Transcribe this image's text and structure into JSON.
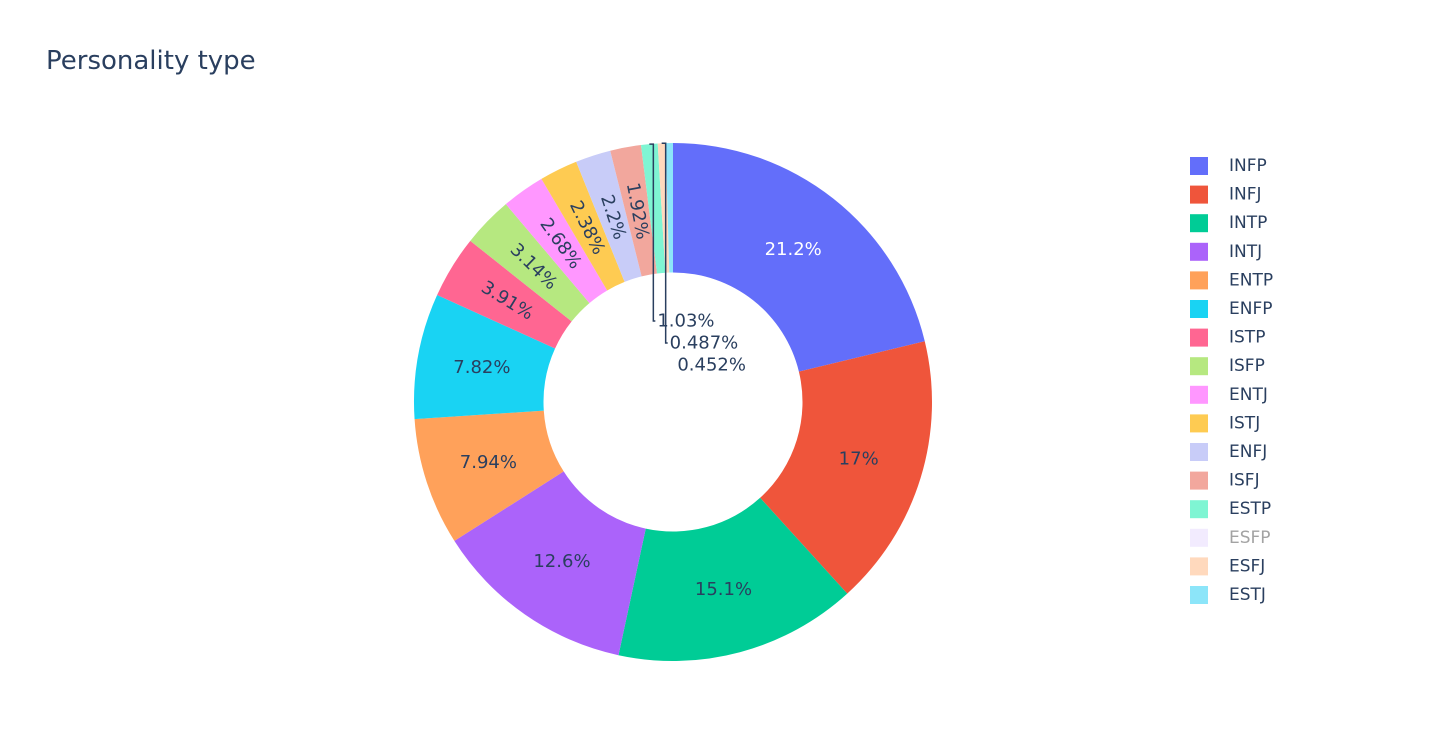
{
  "chart_data": {
    "type": "pie",
    "hole": 0.5,
    "title": "Personality type",
    "legend_position": "right",
    "slices": [
      {
        "label": "INFP",
        "value": 21.2,
        "text": "21.2%",
        "color": "#636efa",
        "text_color": "#ffffff"
      },
      {
        "label": "INFJ",
        "value": 17.0,
        "text": "17%",
        "color": "#ef553b",
        "text_color": "#2a3f5f"
      },
      {
        "label": "INTP",
        "value": 15.1,
        "text": "15.1%",
        "color": "#00cc96",
        "text_color": "#2a3f5f"
      },
      {
        "label": "INTJ",
        "value": 12.6,
        "text": "12.6%",
        "color": "#ab63fa",
        "text_color": "#2a3f5f"
      },
      {
        "label": "ENTP",
        "value": 7.94,
        "text": "7.94%",
        "color": "#ffa15a",
        "text_color": "#2a3f5f"
      },
      {
        "label": "ENFP",
        "value": 7.82,
        "text": "7.82%",
        "color": "#19d3f3",
        "text_color": "#2a3f5f"
      },
      {
        "label": "ISTP",
        "value": 3.91,
        "text": "3.91%",
        "color": "#ff6692",
        "text_color": "#2a3f5f"
      },
      {
        "label": "ISFP",
        "value": 3.14,
        "text": "3.14%",
        "color": "#b6e880",
        "text_color": "#2a3f5f"
      },
      {
        "label": "ENTJ",
        "value": 2.68,
        "text": "2.68%",
        "color": "#ff97ff",
        "text_color": "#2a3f5f"
      },
      {
        "label": "ISTJ",
        "value": 2.38,
        "text": "2.38%",
        "color": "#fecb52",
        "text_color": "#2a3f5f"
      },
      {
        "label": "ENFJ",
        "value": 2.2,
        "text": "2.2%",
        "color": "#c8ccf8",
        "text_color": "#2a3f5f"
      },
      {
        "label": "ISFJ",
        "value": 1.92,
        "text": "1.92%",
        "color": "#f2a79d",
        "text_color": "#2a3f5f"
      },
      {
        "label": "ESTP",
        "value": 1.03,
        "text": "1.03%",
        "color": "#7ff5d3",
        "text_color": "#2a3f5f"
      },
      {
        "label": "ESFP",
        "value": 0.0,
        "text": "",
        "color": "#e5d8fd",
        "text_color": "#2a3f5f",
        "hidden": true
      },
      {
        "label": "ESFJ",
        "value": 0.487,
        "text": "0.487%",
        "color": "#ffd9bd",
        "text_color": "#2a3f5f"
      },
      {
        "label": "ESTJ",
        "value": 0.452,
        "text": "0.452%",
        "color": "#8ce5f9",
        "text_color": "#2a3f5f"
      }
    ]
  }
}
